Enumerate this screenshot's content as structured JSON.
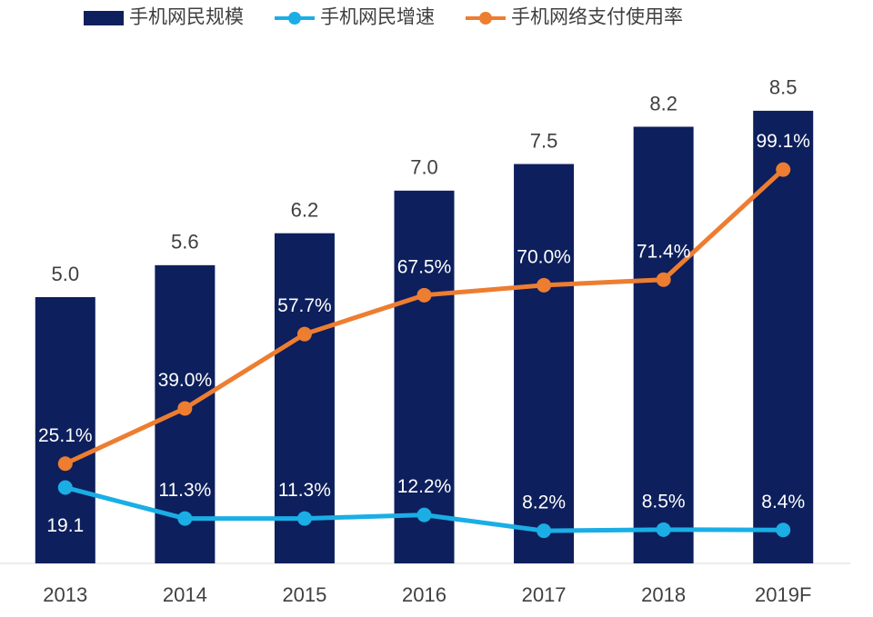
{
  "chart_data": {
    "type": "bar_line",
    "categories": [
      "2013",
      "2014",
      "2015",
      "2016",
      "2017",
      "2018",
      "2019F"
    ],
    "ylim": [
      0,
      10
    ],
    "y2lim": [
      0,
      134
    ],
    "series": [
      {
        "name": "手机网民规模",
        "type": "bar",
        "color": "#0d1f5c",
        "values": [
          5.0,
          5.6,
          6.2,
          7.0,
          7.5,
          8.2,
          8.5
        ],
        "value_labels": [
          "5.0",
          "5.6",
          "6.2",
          "7.0",
          "7.5",
          "8.2",
          "8.5"
        ]
      },
      {
        "name": "手机网民增速",
        "type": "line",
        "axis": "y2",
        "color": "#1aaee5",
        "values": [
          19.1,
          11.3,
          11.3,
          12.2,
          8.2,
          8.5,
          8.4
        ],
        "value_labels": [
          "19.1",
          "11.3%",
          "11.3%",
          "12.2%",
          "8.2%",
          "8.5%",
          "8.4%"
        ]
      },
      {
        "name": "手机网络支付使用率",
        "type": "line",
        "axis": "y2",
        "color": "#ed7d31",
        "values": [
          25.1,
          39.0,
          57.7,
          67.5,
          70.0,
          71.4,
          99.1
        ],
        "value_labels": [
          "25.1%",
          "39.0%",
          "57.7%",
          "67.5%",
          "70.0%",
          "71.4%",
          "99.1%"
        ]
      }
    ]
  }
}
